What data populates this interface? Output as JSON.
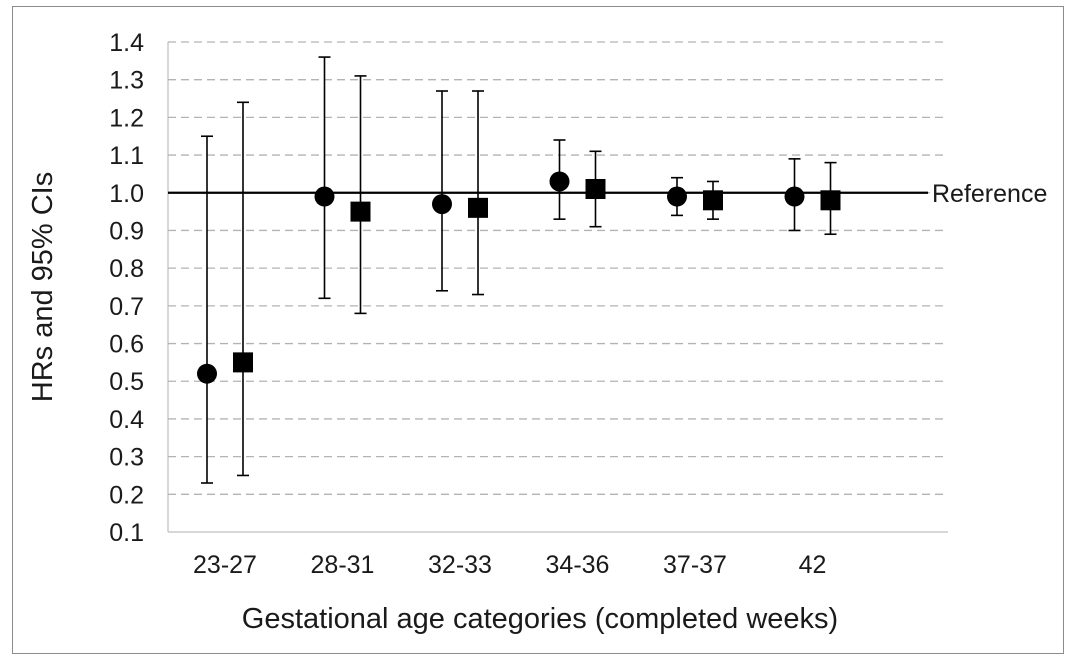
{
  "chart_data": {
    "type": "scatter",
    "title": "",
    "xlabel": "Gestational age categories (completed weeks)",
    "ylabel": "HRs and 95% CIs",
    "ylim": [
      0.1,
      1.4
    ],
    "yticks": [
      "0.1",
      "0.2",
      "0.3",
      "0.4",
      "0.5",
      "0.6",
      "0.7",
      "0.8",
      "0.9",
      "1.0",
      "1.1",
      "1.2",
      "1.3",
      "1.4"
    ],
    "categories": [
      "23-27",
      "28-31",
      "32-33",
      "34-36",
      "37-37",
      "42"
    ],
    "grid": "horizontal-dashed",
    "reference": {
      "value": 1.0,
      "label": "Reference"
    },
    "series": [
      {
        "marker": "circle",
        "values": [
          0.52,
          0.99,
          0.97,
          1.03,
          0.99,
          0.99
        ],
        "lower": [
          0.23,
          0.72,
          0.74,
          0.93,
          0.94,
          0.9
        ],
        "upper": [
          1.15,
          1.36,
          1.27,
          1.14,
          1.04,
          1.09
        ]
      },
      {
        "marker": "square",
        "values": [
          0.55,
          0.95,
          0.96,
          1.01,
          0.98,
          0.98
        ],
        "lower": [
          0.25,
          0.68,
          0.73,
          0.91,
          0.93,
          0.89
        ],
        "upper": [
          1.24,
          1.31,
          1.27,
          1.11,
          1.03,
          1.08
        ]
      }
    ],
    "colors": {
      "marker": "#000000",
      "grid": "#b3b3b3",
      "axis": "#bfbfbf"
    }
  }
}
